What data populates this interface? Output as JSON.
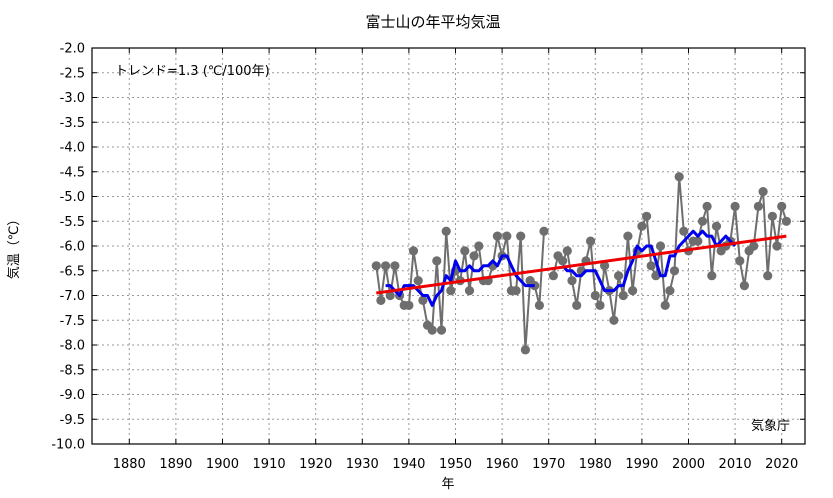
{
  "chart_data": {
    "type": "line",
    "title": "富士山の年平均気温",
    "xlabel": "年",
    "ylabel": "気温（℃）",
    "xlim": [
      1872,
      2025
    ],
    "ylim": [
      -10.0,
      -2.0
    ],
    "x_ticks": [
      1880,
      1890,
      1900,
      1910,
      1920,
      1930,
      1940,
      1950,
      1960,
      1970,
      1980,
      1990,
      2000,
      2010,
      2020
    ],
    "x_tick_labels": [
      "1880",
      "1890",
      "1900",
      "1910",
      "1920",
      "1930",
      "1940",
      "1950",
      "1960",
      "1970",
      "1980",
      "1990",
      "2000",
      "2010",
      "2020"
    ],
    "y_ticks": [
      -10.0,
      -9.5,
      -9.0,
      -8.5,
      -8.0,
      -7.5,
      -7.0,
      -6.5,
      -6.0,
      -5.5,
      -5.0,
      -4.5,
      -4.0,
      -3.5,
      -3.0,
      -2.5,
      -2.0
    ],
    "y_tick_labels": [
      "-10.0",
      "-9.5",
      "-9.0",
      "-8.5",
      "-8.0",
      "-7.5",
      "-7.0",
      "-6.5",
      "-6.0",
      "-5.5",
      "-5.0",
      "-4.5",
      "-4.0",
      "-3.5",
      "-3.0",
      "-2.5",
      "-2.0"
    ],
    "grid": true,
    "trend_text": "トレンド=1.3 (℃/100年)",
    "source_text": "気象庁",
    "colors": {
      "annual": "#6e6e6e",
      "moving_average": "#0000ee",
      "trend": "#ee0000"
    },
    "series": [
      {
        "kind": "annual",
        "segments": [
          {
            "x": [
              1933,
              1934,
              1935,
              1936,
              1937,
              1938,
              1939,
              1940,
              1941,
              1942,
              1943,
              1944,
              1945,
              1946,
              1947,
              1948,
              1949,
              1950,
              1951,
              1952,
              1953,
              1954,
              1955,
              1956,
              1957,
              1958,
              1959,
              1960,
              1961,
              1962,
              1963,
              1964,
              1965,
              1966,
              1967,
              1968,
              1969
            ],
            "y": [
              -6.4,
              -7.1,
              -6.4,
              -7.0,
              -6.4,
              -7.0,
              -7.2,
              -7.2,
              -6.1,
              -6.7,
              -7.1,
              -7.6,
              -7.7,
              -6.3,
              -7.7,
              -5.7,
              -6.9,
              -6.5,
              -6.7,
              -6.1,
              -6.9,
              -6.2,
              -6.0,
              -6.7,
              -6.7,
              -6.4,
              -5.8,
              -6.2,
              -5.8,
              -6.9,
              -6.9,
              -5.8,
              -8.1,
              -6.7,
              -6.8,
              -7.2,
              -5.7
            ]
          },
          {
            "x": [
              1971,
              1972,
              1973,
              1974,
              1975,
              1976,
              1977,
              1978,
              1979,
              1980,
              1981,
              1982,
              1983,
              1984,
              1985,
              1986,
              1987,
              1988,
              1989,
              1990,
              1991,
              1992,
              1993,
              1994,
              1995,
              1996,
              1997,
              1998,
              1999,
              2000,
              2001,
              2002,
              2003,
              2004,
              2005,
              2006,
              2007,
              2008,
              2009,
              2010,
              2011,
              2012,
              2013,
              2014,
              2015,
              2016,
              2017,
              2018,
              2019,
              2020,
              2021
            ],
            "y": [
              -6.6,
              -6.2,
              -6.3,
              -6.1,
              -6.7,
              -7.2,
              -6.5,
              -6.3,
              -5.9,
              -7.0,
              -7.2,
              -6.4,
              -6.9,
              -7.5,
              -6.6,
              -7.0,
              -5.8,
              -6.9,
              -6.1,
              -5.6,
              -5.4,
              -6.4,
              -6.6,
              -6.0,
              -7.2,
              -6.9,
              -6.5,
              -4.6,
              -5.7,
              -6.1,
              -5.9,
              -5.9,
              -5.5,
              -5.2,
              -6.6,
              -5.6,
              -6.1,
              -6.0,
              -5.9,
              -5.2,
              -6.3,
              -6.8,
              -6.1,
              -6.0,
              -5.2,
              -4.9,
              -6.6,
              -5.4,
              -6.0,
              -5.2,
              -5.5
            ]
          }
        ]
      },
      {
        "kind": "moving_average",
        "segments": [
          {
            "x": [
              1935,
              1936,
              1937,
              1938,
              1939,
              1940,
              1941,
              1942,
              1943,
              1944,
              1945,
              1946,
              1947,
              1948,
              1949,
              1950,
              1951,
              1952,
              1953,
              1954,
              1955,
              1956,
              1957,
              1958,
              1959,
              1960,
              1961,
              1962,
              1963,
              1964,
              1965,
              1966,
              1967
            ],
            "y": [
              -6.8,
              -6.8,
              -6.9,
              -7.0,
              -6.8,
              -6.8,
              -6.8,
              -6.9,
              -7.0,
              -7.0,
              -7.2,
              -7.0,
              -6.9,
              -6.6,
              -6.7,
              -6.3,
              -6.5,
              -6.5,
              -6.4,
              -6.5,
              -6.5,
              -6.4,
              -6.4,
              -6.3,
              -6.4,
              -6.2,
              -6.2,
              -6.4,
              -6.6,
              -6.7,
              -6.8,
              -6.8,
              -6.8
            ]
          },
          {
            "x": [
              1973,
              1974,
              1975,
              1976,
              1977,
              1978,
              1979,
              1980,
              1981,
              1982,
              1983,
              1984,
              1985,
              1986,
              1987,
              1988,
              1989,
              1990,
              1991,
              1992,
              1993,
              1994,
              1995,
              1996,
              1997,
              1998,
              1999,
              2000,
              2001,
              2002,
              2003,
              2004,
              2005,
              2006,
              2007,
              2008,
              2009,
              2010
            ],
            "y": [
              -6.4,
              -6.5,
              -6.5,
              -6.6,
              -6.6,
              -6.5,
              -6.5,
              -6.5,
              -6.7,
              -6.9,
              -6.9,
              -6.9,
              -6.8,
              -6.8,
              -6.5,
              -6.3,
              -6.0,
              -6.1,
              -6.0,
              -6.0,
              -6.3,
              -6.6,
              -6.6,
              -6.2,
              -6.2,
              -6.0,
              -5.9,
              -5.8,
              -5.7,
              -5.8,
              -5.7,
              -5.8,
              -5.8,
              -6.0,
              -5.9,
              -5.8,
              -5.9,
              -6.0
            ]
          }
        ]
      },
      {
        "kind": "trend",
        "x": [
          1933,
          2021
        ],
        "y": [
          -6.95,
          -5.8
        ]
      }
    ]
  }
}
